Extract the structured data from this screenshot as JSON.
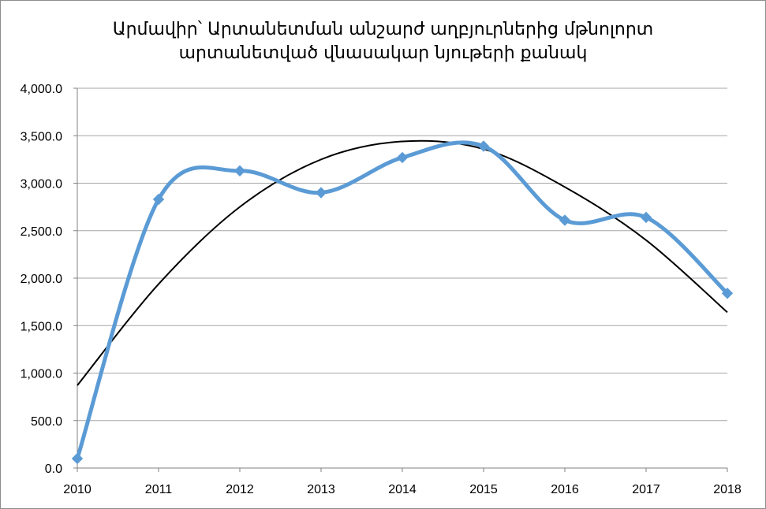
{
  "chart_data": {
    "type": "line",
    "title": [
      "Արմավիր՝ Արտանետման անշարժ աղբյուրներից մթնոլորտ",
      "արտանետված վնասակար նյութերի քանակ"
    ],
    "xlabel": "",
    "ylabel": "",
    "categories": [
      "2010",
      "2011",
      "2012",
      "2013",
      "2014",
      "2015",
      "2016",
      "2017",
      "2018"
    ],
    "series": [
      {
        "values": [
          100,
          2830,
          3130,
          2900,
          3270,
          3390,
          2610,
          2640,
          1840
        ],
        "color": "#5b9bd5",
        "marker": "diamond",
        "smooth": true
      }
    ],
    "trendline": {
      "type": "polynomial",
      "color": "#000000",
      "values": [
        870,
        1937,
        2750,
        3250,
        3440,
        3360,
        2960,
        2400,
        1640
      ]
    },
    "ylim": [
      0,
      4000
    ],
    "yticks": [
      "0.0",
      "500.0",
      "1,000.0",
      "1,500.0",
      "2,000.0",
      "2,500.0",
      "3,000.0",
      "3,500.0",
      "4,000.0"
    ],
    "ytick_values": [
      0,
      500,
      1000,
      1500,
      2000,
      2500,
      3000,
      3500,
      4000
    ],
    "grid": true,
    "gridline_color": "#a6a6a6",
    "legend": "none"
  }
}
